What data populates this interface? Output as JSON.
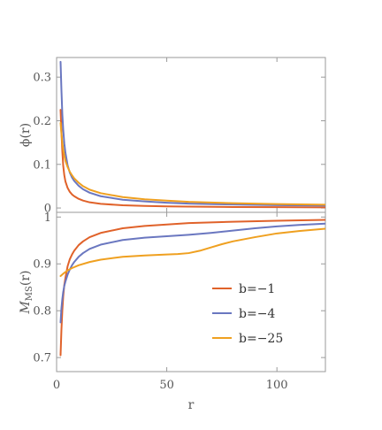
{
  "colors": {
    "b1": "#e0622a",
    "b4": "#6a77c0",
    "b25": "#efa020",
    "axis": "#9a9a9a",
    "text": "#555555"
  },
  "chart_data": [
    {
      "type": "line",
      "panel": "top",
      "ylabel": "ϕ(r)",
      "xlabel": "",
      "xlim": [
        0,
        122
      ],
      "ylim": [
        -0.01,
        0.345
      ],
      "yticks": [
        0,
        0.1,
        0.2,
        0.3
      ],
      "ytick_labels": [
        "0",
        "0.1",
        "0.2",
        "0.3"
      ],
      "xticks": [
        0,
        50,
        100
      ],
      "grid": false,
      "series": [
        {
          "name": "b=−1",
          "color": "#e0622a",
          "x": [
            1.8,
            2.2,
            2.6,
            3,
            3.5,
            4,
            5,
            6,
            7,
            8,
            10,
            12,
            15,
            20,
            30,
            40,
            50,
            60,
            80,
            100,
            122
          ],
          "y": [
            0.225,
            0.175,
            0.13,
            0.097,
            0.075,
            0.061,
            0.046,
            0.037,
            0.031,
            0.027,
            0.021,
            0.017,
            0.013,
            0.0095,
            0.0062,
            0.0046,
            0.0037,
            0.0031,
            0.0023,
            0.0018,
            0.0015
          ]
        },
        {
          "name": "b=−4",
          "color": "#6a77c0",
          "x": [
            1.8,
            2.2,
            2.6,
            3,
            3.5,
            4,
            5,
            6,
            7,
            8,
            10,
            12,
            15,
            20,
            30,
            40,
            50,
            60,
            80,
            100,
            122
          ],
          "y": [
            0.335,
            0.27,
            0.215,
            0.18,
            0.148,
            0.127,
            0.098,
            0.081,
            0.07,
            0.062,
            0.051,
            0.043,
            0.035,
            0.027,
            0.019,
            0.015,
            0.012,
            0.01,
            0.008,
            0.0065,
            0.0055
          ]
        },
        {
          "name": "b=−25",
          "color": "#efa020",
          "x": [
            1.8,
            2.2,
            2.6,
            3,
            3.5,
            4,
            5,
            6,
            7,
            8,
            10,
            12,
            15,
            20,
            30,
            40,
            50,
            60,
            80,
            100,
            122
          ],
          "y": [
            0.195,
            0.17,
            0.15,
            0.134,
            0.12,
            0.108,
            0.094,
            0.083,
            0.075,
            0.068,
            0.058,
            0.05,
            0.042,
            0.034,
            0.025,
            0.02,
            0.017,
            0.014,
            0.011,
            0.009,
            0.0075
          ]
        }
      ]
    },
    {
      "type": "line",
      "panel": "bottom",
      "ylabel": "M",
      "ylabel_sub": "MS",
      "ylabel_suffix": "(r)",
      "xlabel": "r",
      "xlim": [
        0,
        122
      ],
      "ylim": [
        0.67,
        1.01
      ],
      "yticks": [
        0.7,
        0.8,
        0.9,
        1
      ],
      "ytick_labels": [
        "0.7",
        "0.8",
        "0.9",
        "1"
      ],
      "xticks": [
        0,
        50,
        100
      ],
      "xtick_labels": [
        "0",
        "50",
        "100"
      ],
      "grid": false,
      "legend_position": "right",
      "series": [
        {
          "name": "b=−1",
          "color": "#e0622a",
          "x": [
            1.8,
            2.2,
            2.6,
            3,
            3.5,
            4,
            5,
            6,
            7,
            8,
            10,
            12,
            15,
            20,
            30,
            40,
            50,
            60,
            80,
            100,
            122
          ],
          "y": [
            0.705,
            0.76,
            0.8,
            0.83,
            0.855,
            0.87,
            0.895,
            0.91,
            0.92,
            0.928,
            0.94,
            0.948,
            0.957,
            0.966,
            0.976,
            0.981,
            0.984,
            0.987,
            0.99,
            0.992,
            0.994
          ]
        },
        {
          "name": "b=−4",
          "color": "#6a77c0",
          "x": [
            1.8,
            2.2,
            2.6,
            3,
            3.5,
            4,
            5,
            6,
            7,
            8,
            10,
            12,
            15,
            20,
            30,
            40,
            50,
            60,
            70,
            80,
            90,
            100,
            110,
            122
          ],
          "y": [
            0.775,
            0.805,
            0.825,
            0.84,
            0.853,
            0.862,
            0.877,
            0.888,
            0.897,
            0.904,
            0.915,
            0.923,
            0.932,
            0.941,
            0.951,
            0.956,
            0.959,
            0.962,
            0.966,
            0.971,
            0.976,
            0.98,
            0.983,
            0.986
          ]
        },
        {
          "name": "b=−25",
          "color": "#efa020",
          "x": [
            1.8,
            3,
            5,
            7,
            10,
            15,
            20,
            30,
            40,
            50,
            55,
            60,
            65,
            70,
            75,
            80,
            90,
            100,
            110,
            122
          ],
          "y": [
            0.874,
            0.879,
            0.886,
            0.891,
            0.897,
            0.904,
            0.909,
            0.915,
            0.918,
            0.92,
            0.921,
            0.923,
            0.928,
            0.935,
            0.942,
            0.948,
            0.957,
            0.965,
            0.97,
            0.975
          ]
        }
      ]
    }
  ]
}
